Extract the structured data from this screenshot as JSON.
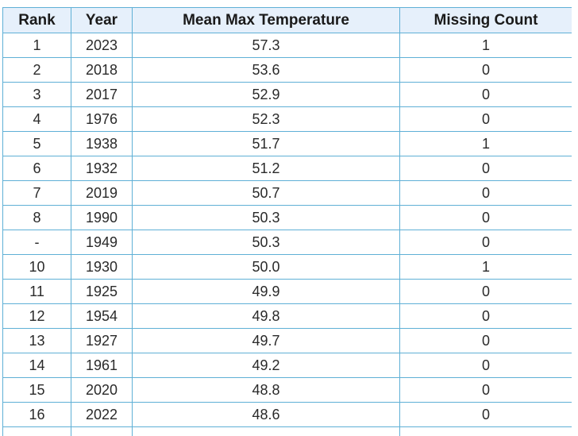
{
  "table": {
    "headers": [
      "Rank",
      "Year",
      "Mean Max Temperature",
      "Missing Count"
    ],
    "rows": [
      [
        "1",
        "2023",
        "57.3",
        "1"
      ],
      [
        "2",
        "2018",
        "53.6",
        "0"
      ],
      [
        "3",
        "2017",
        "52.9",
        "0"
      ],
      [
        "4",
        "1976",
        "52.3",
        "0"
      ],
      [
        "5",
        "1938",
        "51.7",
        "1"
      ],
      [
        "6",
        "1932",
        "51.2",
        "0"
      ],
      [
        "7",
        "2019",
        "50.7",
        "0"
      ],
      [
        "8",
        "1990",
        "50.3",
        "0"
      ],
      [
        "-",
        "1949",
        "50.3",
        "0"
      ],
      [
        "10",
        "1930",
        "50.0",
        "1"
      ],
      [
        "11",
        "1925",
        "49.9",
        "0"
      ],
      [
        "12",
        "1954",
        "49.8",
        "0"
      ],
      [
        "13",
        "1927",
        "49.7",
        "0"
      ],
      [
        "14",
        "1961",
        "49.2",
        "0"
      ],
      [
        "15",
        "2020",
        "48.8",
        "0"
      ],
      [
        "16",
        "2022",
        "48.6",
        "0"
      ],
      [
        "",
        "",
        "",
        ""
      ]
    ]
  },
  "colors": {
    "border": "#5fb0d6",
    "header_bg": "#e6f0fb"
  }
}
